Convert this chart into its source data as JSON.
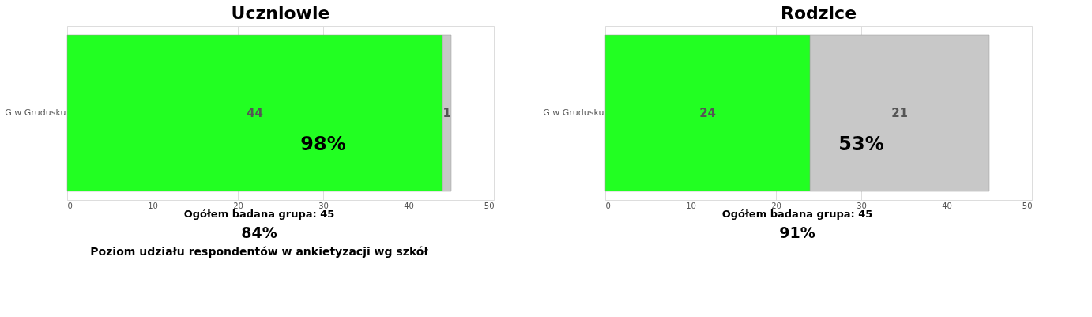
{
  "chart_data": [
    {
      "type": "bar",
      "orientation": "horizontal",
      "stacked": true,
      "title": "Uczniowie",
      "categories": [
        "G w Grudusku"
      ],
      "series": [
        {
          "color": "#22ff22",
          "values": [
            44
          ]
        },
        {
          "color": "#c8c8c8",
          "values": [
            1
          ]
        }
      ],
      "xlim": [
        0,
        50
      ],
      "xticks": [
        0,
        10,
        20,
        30,
        40,
        50
      ],
      "grid": "x",
      "data_labels": true,
      "legend": false,
      "annotations": [
        "98%",
        "Ogółem badana grupa: 45",
        "84%",
        "Poziom udziału respondentów w ankietyzacji wg szkół"
      ]
    },
    {
      "type": "bar",
      "orientation": "horizontal",
      "stacked": true,
      "title": "Rodzice",
      "categories": [
        "G w Grudusku"
      ],
      "series": [
        {
          "color": "#22ff22",
          "values": [
            24
          ]
        },
        {
          "color": "#c8c8c8",
          "values": [
            21
          ]
        }
      ],
      "xlim": [
        0,
        50
      ],
      "xticks": [
        0,
        10,
        20,
        30,
        40,
        50
      ],
      "grid": "x",
      "data_labels": true,
      "legend": false,
      "annotations": [
        "53%",
        "Ogółem badana grupa: 45",
        "91%"
      ]
    }
  ]
}
